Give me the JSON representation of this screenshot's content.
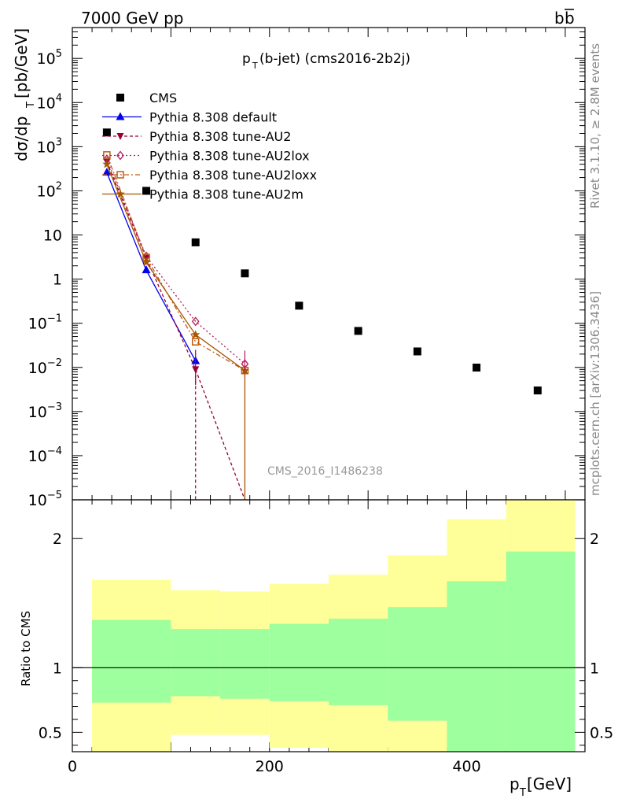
{
  "header": {
    "energy": "7000 GeV pp",
    "process": "b",
    "process_bar": "b"
  },
  "side_labels": {
    "rivet": "Rivet 3.1.10, ≥ 2.8M events",
    "url": "mcplots.cern.ch [arXiv:1306.3436]"
  },
  "chart_data": [
    {
      "type": "scatter",
      "title_main": "p",
      "title_sub": "T",
      "title_rest": "(b-jet) (cms2016-2b2j)",
      "watermark": "CMS_2016_I1486238",
      "ylabel_main": "dσ/dp",
      "ylabel_sub": "T",
      "ylabel_rest": " [pb/GeV]",
      "xlim": [
        0,
        520
      ],
      "ylim": [
        1e-05,
        500000.0
      ],
      "yscale": "log",
      "y_ticks": [
        {
          "v": 100000,
          "base": "10",
          "exp": "5"
        },
        {
          "v": 10000,
          "base": "10",
          "exp": "4"
        },
        {
          "v": 1000,
          "base": "10",
          "exp": "3"
        },
        {
          "v": 100,
          "base": "10",
          "exp": "2"
        },
        {
          "v": 10,
          "base": "10",
          "exp": ""
        },
        {
          "v": 1,
          "base": "1",
          "exp": ""
        },
        {
          "v": 0.1,
          "base": "10",
          "exp": "−1"
        },
        {
          "v": 0.01,
          "base": "10",
          "exp": "−2"
        },
        {
          "v": 0.001,
          "base": "10",
          "exp": "−3"
        },
        {
          "v": 0.0001,
          "base": "10",
          "exp": "−4"
        },
        {
          "v": 1e-05,
          "base": "10",
          "exp": "−5"
        }
      ],
      "legend_position": "top-left",
      "series": [
        {
          "name": "CMS",
          "kind": "data",
          "color": "#000000",
          "x": [
            35,
            75,
            125,
            175,
            230,
            290,
            350,
            410,
            472
          ],
          "y": [
            2100,
            100,
            6.8,
            1.35,
            0.25,
            0.067,
            0.023,
            0.0099,
            0.003
          ]
        },
        {
          "name": "Pythia 8.308 default",
          "kind": "mc",
          "color": "#0000ee",
          "marker": "triangle-up",
          "dash": "",
          "x": [
            35,
            75,
            125
          ],
          "y": [
            260,
            1.6,
            0.014
          ]
        },
        {
          "name": "Pythia 8.308 tune-AU2",
          "kind": "mc",
          "color": "#990033",
          "marker": "triangle-down",
          "dash": "4,3",
          "x": [
            35,
            75,
            125,
            175
          ],
          "y": [
            450,
            3.0,
            0.009,
            0.0
          ]
        },
        {
          "name": "Pythia 8.308 tune-AU2lox",
          "kind": "mc",
          "color": "#b2185a",
          "marker": "diamond-open",
          "dash": "2,3",
          "x": [
            35,
            75,
            125,
            175
          ],
          "y": [
            520,
            3.3,
            0.11,
            0.012
          ]
        },
        {
          "name": "Pythia 8.308 tune-AU2loxx",
          "kind": "mc",
          "color": "#c05a10",
          "marker": "square-open",
          "dash": "6,3,2,3",
          "x": [
            35,
            75,
            125,
            175
          ],
          "y": [
            650,
            3.1,
            0.038,
            0.0085
          ]
        },
        {
          "name": "Pythia 8.308 tune-AU2m",
          "kind": "mc",
          "color": "#a85500",
          "marker": "star",
          "dash": "",
          "x": [
            35,
            75,
            125,
            175
          ],
          "y": [
            400,
            2.4,
            0.055,
            0.0085
          ]
        }
      ]
    },
    {
      "type": "area",
      "ylabel": "Ratio to CMS",
      "xlabel_main": "p",
      "xlabel_sub": "T",
      "xlabel_rest": " [GeV]",
      "xlim": [
        0,
        520
      ],
      "ylim": [
        0.35,
        2.3
      ],
      "x_ticks": [
        "0",
        "200",
        "400"
      ],
      "y_ticks": [
        "0.5",
        "1",
        "2"
      ],
      "colors": {
        "inner": "#9dff9d",
        "outer": "#ffff99"
      },
      "bins": [
        {
          "x0": 20,
          "x1": 100,
          "outer_lo": 0.35,
          "inner_lo": 0.73,
          "inner_hi": 1.37,
          "outer_hi": 1.68
        },
        {
          "x0": 100,
          "x1": 150,
          "outer_lo": 0.48,
          "inner_lo": 0.78,
          "inner_hi": 1.3,
          "outer_hi": 1.6
        },
        {
          "x0": 150,
          "x1": 200,
          "outer_lo": 0.48,
          "inner_lo": 0.76,
          "inner_hi": 1.3,
          "outer_hi": 1.59
        },
        {
          "x0": 200,
          "x1": 260,
          "outer_lo": 0.38,
          "inner_lo": 0.74,
          "inner_hi": 1.34,
          "outer_hi": 1.65
        },
        {
          "x0": 260,
          "x1": 320,
          "outer_lo": 0.35,
          "inner_lo": 0.71,
          "inner_hi": 1.38,
          "outer_hi": 1.72
        },
        {
          "x0": 320,
          "x1": 380,
          "outer_lo": 0.35,
          "inner_lo": 0.59,
          "inner_hi": 1.47,
          "outer_hi": 1.87
        },
        {
          "x0": 380,
          "x1": 440,
          "outer_lo": 0.35,
          "inner_lo": 0.35,
          "inner_hi": 1.67,
          "outer_hi": 2.15
        },
        {
          "x0": 440,
          "x1": 510,
          "outer_lo": 0.35,
          "inner_lo": 0.35,
          "inner_hi": 1.9,
          "outer_hi": 2.3
        }
      ]
    }
  ]
}
